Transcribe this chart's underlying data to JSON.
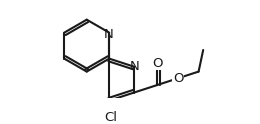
{
  "bg_color": "#ffffff",
  "line_color": "#1a1a1a",
  "line_width": 1.5,
  "font_size": 9.5,
  "figsize": [
    2.6,
    1.24
  ],
  "dpi": 100,
  "atoms": {
    "N_top": "N",
    "N_bridge": "N",
    "Cl": "Cl",
    "O_double": "O",
    "O_single": "O"
  }
}
